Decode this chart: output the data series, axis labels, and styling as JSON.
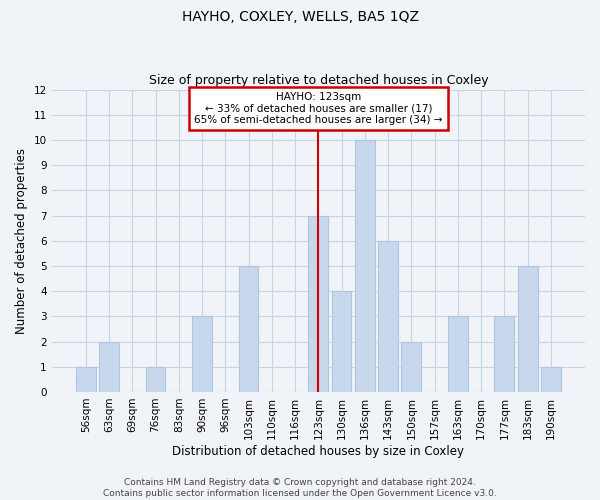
{
  "title": "HAYHO, COXLEY, WELLS, BA5 1QZ",
  "subtitle": "Size of property relative to detached houses in Coxley",
  "xlabel": "Distribution of detached houses by size in Coxley",
  "ylabel": "Number of detached properties",
  "bar_labels": [
    "56sqm",
    "63sqm",
    "69sqm",
    "76sqm",
    "83sqm",
    "90sqm",
    "96sqm",
    "103sqm",
    "110sqm",
    "116sqm",
    "123sqm",
    "130sqm",
    "136sqm",
    "143sqm",
    "150sqm",
    "157sqm",
    "163sqm",
    "170sqm",
    "177sqm",
    "183sqm",
    "190sqm"
  ],
  "bar_values": [
    1,
    2,
    0,
    1,
    0,
    3,
    0,
    5,
    0,
    0,
    7,
    4,
    10,
    6,
    2,
    0,
    3,
    0,
    3,
    5,
    1
  ],
  "bar_color": "#c8d8ec",
  "bar_edge_color": "#aec4e0",
  "marker_index": 10,
  "marker_line_color": "#cc0000",
  "annotation_line1": "HAYHO: 123sqm",
  "annotation_line2": "← 33% of detached houses are smaller (17)",
  "annotation_line3": "65% of semi-detached houses are larger (34) →",
  "annotation_box_color": "#ffffff",
  "annotation_box_edge_color": "#cc0000",
  "ylim": [
    0,
    12
  ],
  "yticks": [
    0,
    1,
    2,
    3,
    4,
    5,
    6,
    7,
    8,
    9,
    10,
    11,
    12
  ],
  "grid_color": "#c8d4e0",
  "background_color": "#f0f4f8",
  "footer_line1": "Contains HM Land Registry data © Crown copyright and database right 2024.",
  "footer_line2": "Contains public sector information licensed under the Open Government Licence v3.0.",
  "title_fontsize": 10,
  "subtitle_fontsize": 9,
  "axis_label_fontsize": 8.5,
  "tick_fontsize": 7.5,
  "footer_fontsize": 6.5
}
